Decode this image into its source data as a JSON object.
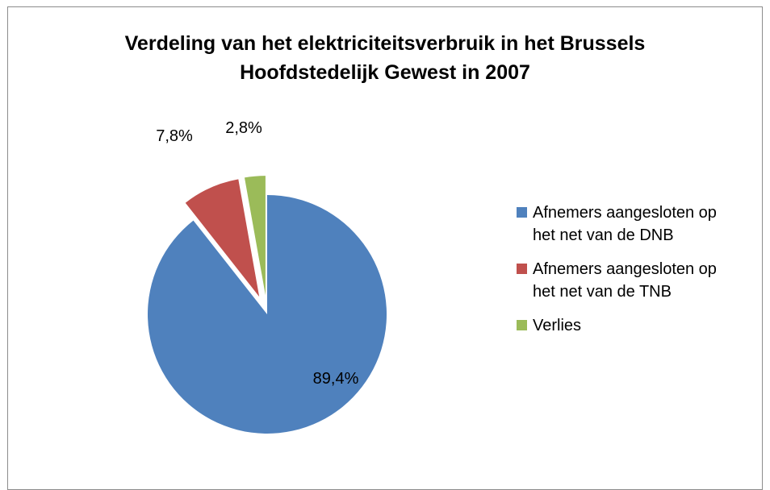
{
  "chart_data": {
    "type": "pie",
    "title": "Verdeling van het elektriciteitsverbruik in het Brussels Hoofdstedelijk Gewest in 2007",
    "title_lines": [
      "Verdeling van het elektriciteitsverbruik in het Brussels",
      "Hoofdstedelijk Gewest in 2007"
    ],
    "categories": [
      "Afnemers aangesloten op het net van de DNB",
      "Afnemers aangesloten op het net van de TNB",
      "Verlies"
    ],
    "values": [
      89.4,
      7.8,
      2.8
    ],
    "labels": [
      "89,4%",
      "7,8%",
      "2,8%"
    ],
    "colors": [
      "#4f81bd",
      "#c0504d",
      "#9bbb59"
    ],
    "exploded": [
      false,
      true,
      true
    ],
    "legend_position": "right"
  },
  "legend": {
    "items": [
      {
        "line1": "Afnemers aangesloten op",
        "line2": "het net van de DNB"
      },
      {
        "line1": "Afnemers aangesloten op",
        "line2": "het net van de TNB"
      },
      {
        "line1": "Verlies",
        "line2": ""
      }
    ]
  }
}
